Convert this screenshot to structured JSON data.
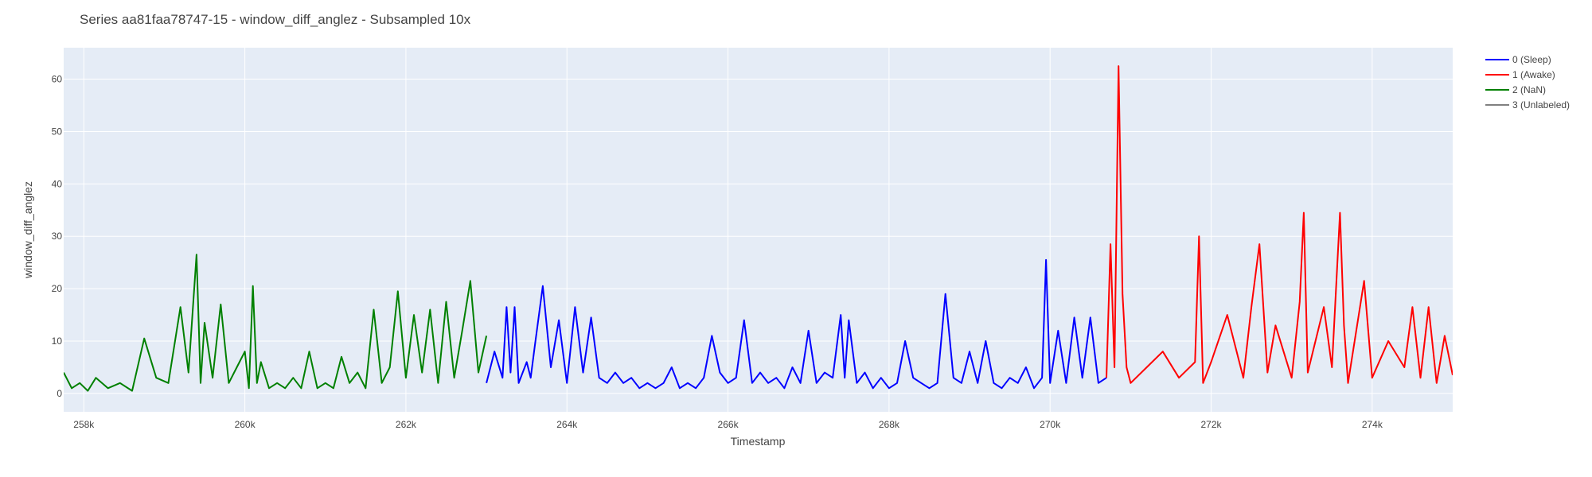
{
  "chart_data": {
    "type": "line",
    "title": "Series aa81faa78747-15 - window_diff_anglez - Subsampled 10x",
    "xlabel": "Timestamp",
    "ylabel": "window_diff_anglez",
    "xlim": [
      257750,
      275000
    ],
    "ylim": [
      -3.5,
      66
    ],
    "x_ticks": [
      258000,
      260000,
      262000,
      264000,
      266000,
      268000,
      270000,
      272000,
      274000
    ],
    "x_tick_labels": [
      "258k",
      "260k",
      "262k",
      "264k",
      "266k",
      "268k",
      "270k",
      "272k",
      "274k"
    ],
    "y_ticks": [
      0,
      10,
      20,
      30,
      40,
      50,
      60
    ],
    "y_tick_labels": [
      "0",
      "10",
      "20",
      "30",
      "40",
      "50",
      "60"
    ],
    "grid": true,
    "legend_position": "top-right",
    "plot_background": "#e5ecf6",
    "series": [
      {
        "name": "0 (Sleep)",
        "color": "#0000ff",
        "x": [
          263000,
          263100,
          263200,
          263250,
          263300,
          263350,
          263400,
          263500,
          263550,
          263600,
          263700,
          263800,
          263900,
          264000,
          264100,
          264200,
          264300,
          264400,
          264500,
          264600,
          264700,
          264800,
          264900,
          265000,
          265100,
          265200,
          265300,
          265400,
          265500,
          265600,
          265700,
          265800,
          265900,
          266000,
          266100,
          266200,
          266300,
          266400,
          266500,
          266600,
          266700,
          266800,
          266900,
          267000,
          267100,
          267200,
          267300,
          267400,
          267450,
          267500,
          267600,
          267700,
          267800,
          267900,
          268000,
          268100,
          268200,
          268300,
          268400,
          268500,
          268600,
          268700,
          268800,
          268900,
          269000,
          269100,
          269200,
          269300,
          269400,
          269500,
          269600,
          269700,
          269800,
          269900,
          269950,
          270000,
          270100,
          270200,
          270300,
          270400,
          270500,
          270600,
          270700
        ],
        "y": [
          2,
          8,
          3,
          16.5,
          4,
          16.5,
          2,
          6,
          3,
          9,
          20.5,
          5,
          14,
          2,
          16.5,
          4,
          14.5,
          3,
          2,
          4,
          2,
          3,
          1,
          2,
          1,
          2,
          5,
          1,
          2,
          1,
          3,
          11,
          4,
          2,
          3,
          14,
          2,
          4,
          2,
          3,
          1,
          5,
          2,
          12,
          2,
          4,
          3,
          15,
          3,
          14,
          2,
          4,
          1,
          3,
          1,
          2,
          10,
          3,
          2,
          1,
          2,
          19,
          3,
          2,
          8,
          2,
          10,
          2,
          1,
          3,
          2,
          5,
          1,
          3,
          25.5,
          2,
          12,
          2,
          14.5,
          3,
          14.5,
          2,
          3
        ]
      },
      {
        "name": "1 (Awake)",
        "color": "#ff0000",
        "x": [
          270700,
          270750,
          270800,
          270850,
          270900,
          270950,
          271000,
          271200,
          271400,
          271600,
          271800,
          271850,
          271900,
          272000,
          272200,
          272400,
          272500,
          272600,
          272700,
          272800,
          273000,
          273100,
          273150,
          273200,
          273400,
          273500,
          273600,
          273650,
          273700,
          273900,
          274000,
          274200,
          274400,
          274500,
          274600,
          274700,
          274800,
          274900,
          275000
        ],
        "y": [
          3,
          28.5,
          5,
          62.5,
          19,
          5,
          2,
          5,
          8,
          3,
          6,
          30,
          2,
          6,
          15,
          3,
          16.5,
          28.5,
          4,
          13,
          3,
          17.5,
          34.5,
          4,
          16.5,
          5,
          34.5,
          13,
          2,
          21.5,
          3,
          10,
          5,
          16.5,
          3,
          16.5,
          2,
          11,
          3.5
        ]
      },
      {
        "name": "2 (NaN)",
        "color": "#008000",
        "x": [
          257750,
          257850,
          257950,
          258050,
          258150,
          258300,
          258450,
          258600,
          258750,
          258900,
          259050,
          259200,
          259300,
          259400,
          259450,
          259500,
          259600,
          259700,
          259800,
          259900,
          260000,
          260050,
          260100,
          260150,
          260200,
          260300,
          260400,
          260500,
          260600,
          260700,
          260800,
          260900,
          261000,
          261100,
          261200,
          261300,
          261400,
          261500,
          261600,
          261700,
          261800,
          261900,
          262000,
          262100,
          262200,
          262300,
          262400,
          262500,
          262600,
          262700,
          262800,
          262900,
          263000
        ],
        "y": [
          4,
          1,
          2,
          0.5,
          3,
          1,
          2,
          0.5,
          10.5,
          3,
          2,
          16.5,
          4,
          26.5,
          2,
          13.5,
          3,
          17,
          2,
          5,
          8,
          1,
          20.5,
          2,
          6,
          1,
          2,
          1,
          3,
          1,
          8,
          1,
          2,
          1,
          7,
          2,
          4,
          1,
          16,
          2,
          5,
          19.5,
          3,
          15,
          4,
          16,
          2,
          17.5,
          3,
          12,
          21.5,
          4,
          11
        ]
      },
      {
        "name": "3 (Unlabeled)",
        "color": "#808080",
        "x": [],
        "y": []
      }
    ]
  }
}
